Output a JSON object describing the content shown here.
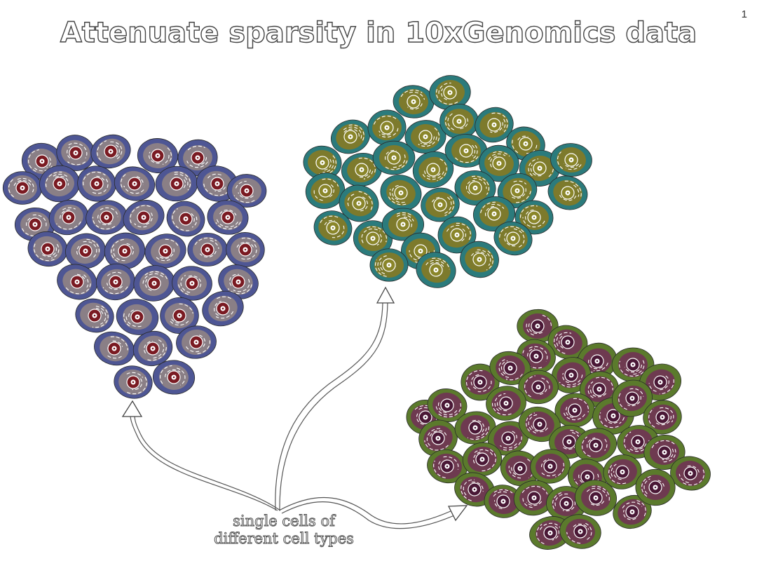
{
  "slide": {
    "title": "Attenuate sparsity in 10xGenomics data",
    "number": "1",
    "caption_line1": "single cells of",
    "caption_line2": "different cell types"
  },
  "clusters": [
    {
      "name": "cluster-blue-red",
      "outer": "#4e5694",
      "mid": "#8a7f86",
      "nucleus": "#7a1a22"
    },
    {
      "name": "cluster-teal-olive",
      "outer": "#2b7b7c",
      "mid": "#7d7a2c",
      "nucleus": "#8a862a"
    },
    {
      "name": "cluster-green-plum",
      "outer": "#5b7a2c",
      "mid": "#6e3a50",
      "nucleus": "#4a1836"
    }
  ]
}
